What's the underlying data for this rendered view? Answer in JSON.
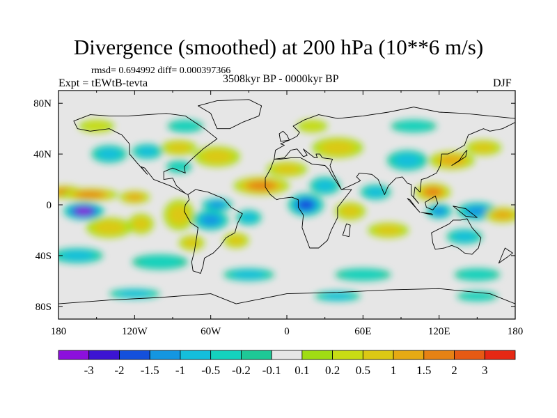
{
  "title": "Divergence (smoothed) at 200 hPa (10**6 m/s)",
  "stats_text": "rmsd= 0.694992 diff= 0.000397366",
  "experiment_label": "Expt = tEWtB-tevta",
  "period_label": "3508kyr BP - 0000kyr BP",
  "season_label": "DJF",
  "map": {
    "projection": "cylindrical equidistant",
    "lon_range": [
      -180,
      180
    ],
    "lat_range": [
      -90,
      90
    ],
    "background_color": "#e6e6e6",
    "lat_ticks": [
      {
        "value": 80,
        "label": "80N"
      },
      {
        "value": 40,
        "label": "40N"
      },
      {
        "value": 0,
        "label": "0"
      },
      {
        "value": -40,
        "label": "40S"
      },
      {
        "value": -80,
        "label": "80S"
      }
    ],
    "lon_ticks": [
      {
        "value": -180,
        "label": "180"
      },
      {
        "value": -120,
        "label": "120W"
      },
      {
        "value": -60,
        "label": "60W"
      },
      {
        "value": 0,
        "label": "0"
      },
      {
        "value": 60,
        "label": "60E"
      },
      {
        "value": 120,
        "label": "120E"
      },
      {
        "value": 180,
        "label": "180"
      }
    ]
  },
  "colorbar": {
    "colors": [
      "#8c10dc",
      "#3c14d2",
      "#1450dc",
      "#1496e1",
      "#14bedc",
      "#14d2be",
      "#1ec896",
      "#e6e6e6",
      "#a0dc14",
      "#c8dc14",
      "#dcc814",
      "#e6aa14",
      "#e68214",
      "#e65a14",
      "#e62814"
    ],
    "labels": [
      "-3",
      "-2",
      "-1.5",
      "-1",
      "-0.5",
      "-0.2",
      "-0.1",
      "0.1",
      "0.2",
      "0.5",
      "1",
      "1.5",
      "2",
      "3"
    ]
  },
  "field_features": [
    {
      "lon": -160,
      "lat": -5,
      "w": 16,
      "h": 7,
      "level": -3.2
    },
    {
      "lon": -175,
      "lat": 10,
      "w": 14,
      "h": 5,
      "level": 1.8
    },
    {
      "lon": -155,
      "lat": 8,
      "w": 22,
      "h": 5,
      "level": 1.6
    },
    {
      "lon": -120,
      "lat": 6,
      "w": 12,
      "h": 5,
      "level": 1.3
    },
    {
      "lon": -140,
      "lat": -18,
      "w": 18,
      "h": 8,
      "level": 0.9
    },
    {
      "lon": -115,
      "lat": -15,
      "w": 10,
      "h": 8,
      "level": 0.7
    },
    {
      "lon": -85,
      "lat": -8,
      "w": 12,
      "h": 12,
      "level": 0.9
    },
    {
      "lon": -140,
      "lat": 40,
      "w": 14,
      "h": 7,
      "level": -0.9
    },
    {
      "lon": -110,
      "lat": 42,
      "w": 12,
      "h": 6,
      "level": -0.6
    },
    {
      "lon": -85,
      "lat": 45,
      "w": 14,
      "h": 6,
      "level": 0.6
    },
    {
      "lon": -85,
      "lat": 30,
      "w": 10,
      "h": 5,
      "level": -0.4
    },
    {
      "lon": -55,
      "lat": 38,
      "w": 18,
      "h": 8,
      "level": 0.8
    },
    {
      "lon": -60,
      "lat": -12,
      "w": 14,
      "h": 8,
      "level": -1.3
    },
    {
      "lon": -55,
      "lat": 0,
      "w": 12,
      "h": 5,
      "level": -1.0
    },
    {
      "lon": -75,
      "lat": -30,
      "w": 10,
      "h": 6,
      "level": 0.6
    },
    {
      "lon": -40,
      "lat": -28,
      "w": 10,
      "h": 6,
      "level": 0.9
    },
    {
      "lon": -20,
      "lat": 15,
      "w": 22,
      "h": 7,
      "level": 1.6
    },
    {
      "lon": 0,
      "lat": 28,
      "w": 16,
      "h": 6,
      "level": 0.9
    },
    {
      "lon": -30,
      "lat": -10,
      "w": 10,
      "h": 6,
      "level": -0.5
    },
    {
      "lon": 15,
      "lat": 0,
      "w": 14,
      "h": 9,
      "level": -1.8
    },
    {
      "lon": 30,
      "lat": 15,
      "w": 12,
      "h": 7,
      "level": -0.6
    },
    {
      "lon": 50,
      "lat": -5,
      "w": 12,
      "h": 7,
      "level": 0.8
    },
    {
      "lon": 80,
      "lat": -20,
      "w": 16,
      "h": 6,
      "level": 0.5
    },
    {
      "lon": 70,
      "lat": 10,
      "w": 12,
      "h": 6,
      "level": -0.5
    },
    {
      "lon": 40,
      "lat": 45,
      "w": 20,
      "h": 8,
      "level": 0.5
    },
    {
      "lon": 95,
      "lat": 35,
      "w": 16,
      "h": 8,
      "level": -0.6
    },
    {
      "lon": 130,
      "lat": 35,
      "w": 18,
      "h": 7,
      "level": 1.4
    },
    {
      "lon": 155,
      "lat": 45,
      "w": 14,
      "h": 6,
      "level": 0.9
    },
    {
      "lon": 115,
      "lat": 10,
      "w": 14,
      "h": 7,
      "level": 1.7
    },
    {
      "lon": 120,
      "lat": -5,
      "w": 10,
      "h": 6,
      "level": -1.3
    },
    {
      "lon": 150,
      "lat": -5,
      "w": 16,
      "h": 7,
      "level": -1.4
    },
    {
      "lon": 170,
      "lat": -8,
      "w": 14,
      "h": 6,
      "level": 1.3
    },
    {
      "lon": 140,
      "lat": -25,
      "w": 14,
      "h": 6,
      "level": -0.5
    },
    {
      "lon": -165,
      "lat": -40,
      "w": 20,
      "h": 6,
      "level": -0.5
    },
    {
      "lon": -100,
      "lat": -45,
      "w": 22,
      "h": 6,
      "level": -0.4
    },
    {
      "lon": -30,
      "lat": -55,
      "w": 20,
      "h": 5,
      "level": -0.5
    },
    {
      "lon": 60,
      "lat": -55,
      "w": 22,
      "h": 5,
      "level": -0.4
    },
    {
      "lon": 150,
      "lat": -55,
      "w": 18,
      "h": 5,
      "level": -0.4
    },
    {
      "lon": -120,
      "lat": -70,
      "w": 20,
      "h": 4,
      "level": -0.6
    },
    {
      "lon": 40,
      "lat": -72,
      "w": 18,
      "h": 4,
      "level": -0.5
    },
    {
      "lon": 150,
      "lat": -72,
      "w": 16,
      "h": 4,
      "level": -0.4
    },
    {
      "lon": -150,
      "lat": 62,
      "w": 14,
      "h": 5,
      "level": 0.4
    },
    {
      "lon": -80,
      "lat": 62,
      "w": 14,
      "h": 5,
      "level": -0.4
    },
    {
      "lon": 20,
      "lat": 62,
      "w": 12,
      "h": 5,
      "level": 0.3
    },
    {
      "lon": 100,
      "lat": 62,
      "w": 18,
      "h": 5,
      "level": -0.3
    }
  ],
  "land_outlines": [
    [
      [
        -168,
        66
      ],
      [
        -155,
        71
      ],
      [
        -140,
        70
      ],
      [
        -125,
        70
      ],
      [
        -95,
        72
      ],
      [
        -80,
        70
      ],
      [
        -65,
        60
      ],
      [
        -55,
        52
      ],
      [
        -66,
        44
      ],
      [
        -75,
        36
      ],
      [
        -81,
        30
      ],
      [
        -80,
        25
      ],
      [
        -90,
        29
      ],
      [
        -97,
        26
      ],
      [
        -97,
        20
      ],
      [
        -90,
        21
      ],
      [
        -87,
        15
      ],
      [
        -80,
        9
      ],
      [
        -78,
        8
      ],
      [
        -92,
        15
      ],
      [
        -105,
        20
      ],
      [
        -112,
        29
      ],
      [
        -115,
        30
      ],
      [
        -110,
        24
      ],
      [
        -118,
        33
      ],
      [
        -124,
        40
      ],
      [
        -124,
        48
      ],
      [
        -130,
        55
      ],
      [
        -140,
        60
      ],
      [
        -155,
        58
      ],
      [
        -165,
        60
      ],
      [
        -168,
        66
      ]
    ],
    [
      [
        -78,
        8
      ],
      [
        -72,
        12
      ],
      [
        -62,
        10
      ],
      [
        -50,
        5
      ],
      [
        -44,
        -2
      ],
      [
        -35,
        -7
      ],
      [
        -39,
        -15
      ],
      [
        -41,
        -22
      ],
      [
        -48,
        -26
      ],
      [
        -53,
        -33
      ],
      [
        -58,
        -38
      ],
      [
        -65,
        -42
      ],
      [
        -66,
        -48
      ],
      [
        -68,
        -54
      ],
      [
        -74,
        -52
      ],
      [
        -75,
        -45
      ],
      [
        -73,
        -37
      ],
      [
        -71,
        -25
      ],
      [
        -70,
        -18
      ],
      [
        -76,
        -14
      ],
      [
        -81,
        -5
      ],
      [
        -80,
        0
      ],
      [
        -77,
        4
      ],
      [
        -78,
        8
      ]
    ],
    [
      [
        -10,
        36
      ],
      [
        -5,
        36
      ],
      [
        3,
        37
      ],
      [
        11,
        37
      ],
      [
        20,
        32
      ],
      [
        30,
        31
      ],
      [
        33,
        28
      ],
      [
        35,
        24
      ],
      [
        43,
        12
      ],
      [
        51,
        12
      ],
      [
        40,
        -2
      ],
      [
        40,
        -10
      ],
      [
        35,
        -20
      ],
      [
        32,
        -28
      ],
      [
        25,
        -34
      ],
      [
        18,
        -34
      ],
      [
        12,
        -18
      ],
      [
        13,
        -8
      ],
      [
        9,
        -2
      ],
      [
        9,
        4
      ],
      [
        4,
        6
      ],
      [
        -5,
        5
      ],
      [
        -8,
        4
      ],
      [
        -13,
        8
      ],
      [
        -17,
        14
      ],
      [
        -17,
        21
      ],
      [
        -13,
        28
      ],
      [
        -10,
        36
      ]
    ],
    [
      [
        -10,
        36
      ],
      [
        -9,
        43
      ],
      [
        -2,
        47
      ],
      [
        -5,
        48
      ],
      [
        2,
        51
      ],
      [
        8,
        54
      ],
      [
        10,
        57
      ],
      [
        5,
        62
      ],
      [
        14,
        67
      ],
      [
        25,
        71
      ],
      [
        40,
        68
      ],
      [
        60,
        70
      ],
      [
        80,
        73
      ],
      [
        100,
        77
      ],
      [
        120,
        73
      ],
      [
        140,
        72
      ],
      [
        160,
        70
      ],
      [
        180,
        68
      ],
      [
        180,
        65
      ],
      [
        170,
        60
      ],
      [
        160,
        58
      ],
      [
        155,
        60
      ],
      [
        143,
        55
      ],
      [
        140,
        47
      ],
      [
        133,
        43
      ],
      [
        127,
        40
      ],
      [
        122,
        40
      ],
      [
        121,
        31
      ],
      [
        118,
        25
      ],
      [
        110,
        21
      ],
      [
        106,
        20
      ],
      [
        105,
        10
      ],
      [
        101,
        14
      ],
      [
        100,
        6
      ],
      [
        104,
        1
      ],
      [
        98,
        8
      ],
      [
        98,
        16
      ],
      [
        95,
        17
      ],
      [
        91,
        22
      ],
      [
        86,
        21
      ],
      [
        80,
        15
      ],
      [
        77,
        8
      ],
      [
        72,
        20
      ],
      [
        67,
        24
      ],
      [
        57,
        25
      ],
      [
        55,
        22
      ],
      [
        58,
        19
      ],
      [
        52,
        16
      ],
      [
        43,
        12
      ],
      [
        39,
        20
      ],
      [
        35,
        28
      ],
      [
        34,
        31
      ],
      [
        36,
        36
      ],
      [
        28,
        37
      ],
      [
        26,
        40
      ],
      [
        23,
        40
      ],
      [
        24,
        37
      ],
      [
        22,
        37
      ],
      [
        18,
        40
      ],
      [
        13,
        44
      ],
      [
        16,
        39
      ],
      [
        13,
        38
      ],
      [
        8,
        44
      ],
      [
        3,
        43
      ],
      [
        -2,
        37
      ],
      [
        -10,
        36
      ]
    ],
    [
      [
        114,
        -22
      ],
      [
        122,
        -18
      ],
      [
        128,
        -15
      ],
      [
        131,
        -12
      ],
      [
        137,
        -12
      ],
      [
        142,
        -11
      ],
      [
        146,
        -18
      ],
      [
        153,
        -26
      ],
      [
        151,
        -34
      ],
      [
        146,
        -39
      ],
      [
        140,
        -38
      ],
      [
        135,
        -34
      ],
      [
        130,
        -32
      ],
      [
        124,
        -34
      ],
      [
        117,
        -35
      ],
      [
        115,
        -30
      ],
      [
        114,
        -22
      ]
    ],
    [
      [
        -55,
        60
      ],
      [
        -45,
        60
      ],
      [
        -35,
        65
      ],
      [
        -22,
        70
      ],
      [
        -20,
        78
      ],
      [
        -30,
        83
      ],
      [
        -55,
        82
      ],
      [
        -70,
        78
      ],
      [
        -60,
        72
      ],
      [
        -55,
        60
      ]
    ],
    [
      [
        -180,
        -78
      ],
      [
        -140,
        -75
      ],
      [
        -100,
        -73
      ],
      [
        -60,
        -70
      ],
      [
        -40,
        -78
      ],
      [
        0,
        -70
      ],
      [
        40,
        -69
      ],
      [
        80,
        -67
      ],
      [
        120,
        -66
      ],
      [
        160,
        -70
      ],
      [
        180,
        -78
      ],
      [
        180,
        -90
      ],
      [
        -180,
        -90
      ],
      [
        -180,
        -78
      ]
    ],
    [
      [
        95,
        5
      ],
      [
        105,
        -6
      ],
      [
        103,
        -4
      ],
      [
        97,
        4
      ],
      [
        95,
        5
      ]
    ],
    [
      [
        106,
        -6
      ],
      [
        115,
        -8
      ],
      [
        114,
        -7
      ],
      [
        106,
        -6
      ]
    ],
    [
      [
        109,
        2
      ],
      [
        117,
        7
      ],
      [
        119,
        1
      ],
      [
        115,
        -4
      ],
      [
        110,
        -2
      ],
      [
        109,
        2
      ]
    ],
    [
      [
        131,
        -1
      ],
      [
        141,
        -3
      ],
      [
        150,
        -10
      ],
      [
        141,
        -9
      ],
      [
        131,
        -1
      ]
    ],
    [
      [
        -5,
        50
      ],
      [
        2,
        51
      ],
      [
        0,
        55
      ],
      [
        -3,
        58
      ],
      [
        -6,
        56
      ],
      [
        -5,
        50
      ]
    ],
    [
      [
        130,
        31
      ],
      [
        135,
        34
      ],
      [
        141,
        38
      ],
      [
        142,
        43
      ],
      [
        140,
        41
      ],
      [
        136,
        35
      ],
      [
        130,
        31
      ]
    ],
    [
      [
        47,
        -15
      ],
      [
        50,
        -16
      ],
      [
        49,
        -25
      ],
      [
        44,
        -24
      ],
      [
        47,
        -15
      ]
    ],
    [
      [
        172,
        -34
      ],
      [
        178,
        -38
      ],
      [
        174,
        -41
      ],
      [
        167,
        -46
      ],
      [
        172,
        -34
      ]
    ]
  ]
}
